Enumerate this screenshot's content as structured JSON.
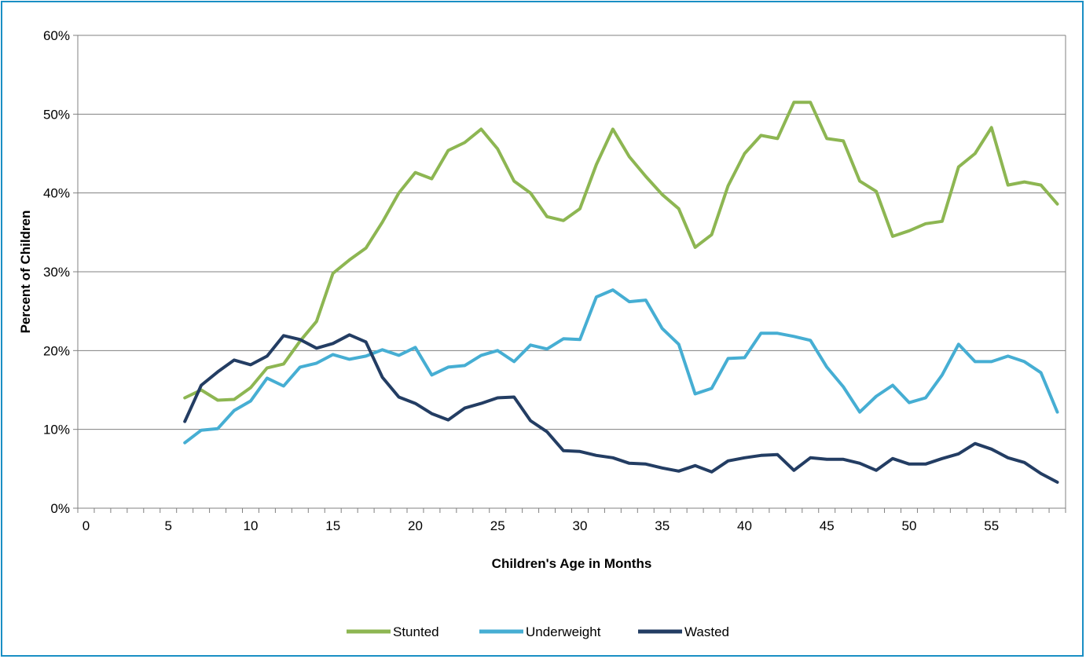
{
  "chart_data": {
    "type": "line",
    "xlabel": "Children's Age in Months",
    "ylabel": "Percent of Children",
    "xlim": [
      0,
      59
    ],
    "ylim": [
      0,
      60
    ],
    "x_ticks": [
      "0",
      "5",
      "10",
      "15",
      "20",
      "25",
      "30",
      "35",
      "40",
      "45",
      "50",
      "55"
    ],
    "x_tick_values": [
      0,
      5,
      10,
      15,
      20,
      25,
      30,
      35,
      40,
      45,
      50,
      55
    ],
    "y_ticks": [
      "0%",
      "10%",
      "20%",
      "30%",
      "40%",
      "50%",
      "60%"
    ],
    "y_tick_values": [
      0,
      10,
      20,
      30,
      40,
      50,
      60
    ],
    "grid": "horizontal",
    "legend_position": "bottom",
    "x": [
      6,
      7,
      8,
      9,
      10,
      11,
      12,
      13,
      14,
      15,
      16,
      17,
      18,
      19,
      20,
      21,
      22,
      23,
      24,
      25,
      26,
      27,
      28,
      29,
      30,
      31,
      32,
      33,
      34,
      35,
      36,
      37,
      38,
      39,
      40,
      41,
      42,
      43,
      44,
      45,
      46,
      47,
      48,
      49,
      50,
      51,
      52,
      53,
      54,
      55,
      56,
      57,
      58,
      59
    ],
    "series": [
      {
        "name": "Stunted",
        "color": "#8db652",
        "values": [
          14,
          15,
          13.7,
          13.8,
          15.3,
          17.8,
          18.3,
          21.2,
          23.7,
          29.8,
          31.5,
          33,
          36.3,
          40,
          42.6,
          41.8,
          45.4,
          46.4,
          48.1,
          45.6,
          41.5,
          40,
          37,
          36.5,
          38,
          43.6,
          48.1,
          44.6,
          42.1,
          39.8,
          38,
          33.1,
          34.7,
          40.9,
          45,
          47.3,
          46.9,
          51.5,
          51.5,
          46.9,
          46.6,
          41.5,
          40.2,
          34.5,
          35.2,
          36.1,
          36.4,
          43.3,
          45,
          48.3,
          41,
          41.4,
          41,
          38.6
        ]
      },
      {
        "name": "Underweight",
        "color": "#46aed3",
        "values": [
          8.3,
          9.9,
          10.1,
          12.4,
          13.6,
          16.5,
          15.5,
          17.9,
          18.4,
          19.5,
          18.9,
          19.3,
          20.1,
          19.4,
          20.4,
          16.9,
          17.9,
          18.1,
          19.4,
          20,
          18.6,
          20.7,
          20.2,
          21.5,
          21.4,
          26.8,
          27.7,
          26.2,
          26.4,
          22.8,
          20.8,
          14.5,
          15.2,
          19,
          19.1,
          22.2,
          22.2,
          21.8,
          21.3,
          17.9,
          15.4,
          12.2,
          14.2,
          15.6,
          13.4,
          14,
          16.9,
          20.8,
          18.6,
          18.6,
          19.3,
          18.6,
          17.2,
          12.2
        ]
      },
      {
        "name": "Wasted",
        "color": "#233d63",
        "values": [
          11,
          15.6,
          17.3,
          18.8,
          18.2,
          19.3,
          21.9,
          21.4,
          20.3,
          20.9,
          22,
          21.1,
          16.6,
          14.1,
          13.3,
          12,
          11.2,
          12.7,
          13.3,
          14,
          14.1,
          11.1,
          9.7,
          7.3,
          7.2,
          6.7,
          6.4,
          5.7,
          5.6,
          5.1,
          4.7,
          5.4,
          4.6,
          6,
          6.4,
          6.7,
          6.8,
          4.8,
          6.4,
          6.2,
          6.2,
          5.7,
          4.8,
          6.3,
          5.6,
          5.6,
          6.3,
          6.9,
          8.2,
          7.5,
          6.4,
          5.8,
          4.4,
          3.3
        ]
      }
    ]
  }
}
